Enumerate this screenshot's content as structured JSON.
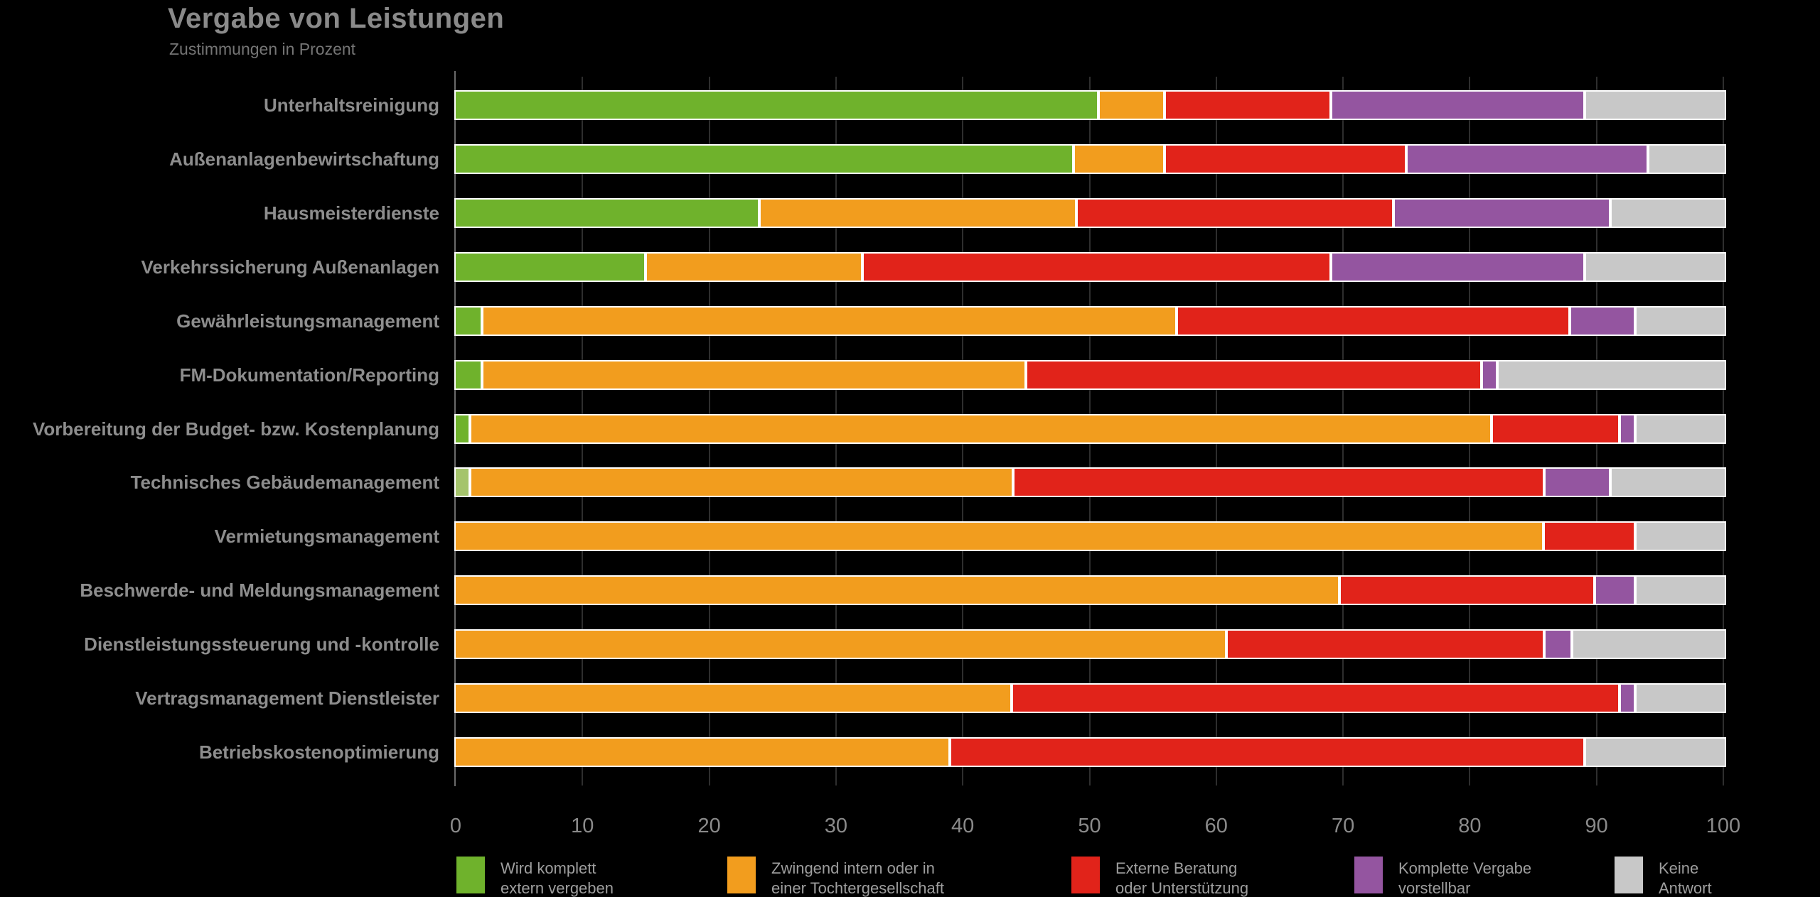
{
  "header": {
    "title": "Vergabe von Leistungen",
    "subtitle": "Zustimmungen in Prozent"
  },
  "chart_data": {
    "type": "bar",
    "orientation": "horizontal",
    "stacked": true,
    "unit": "percent",
    "title": "Vergabe von Leistungen",
    "subtitle": "Zustimmungen in Prozent",
    "xlabel": "",
    "ylabel": "",
    "xlim": [
      0,
      100
    ],
    "x_ticks": [
      0,
      10,
      20,
      30,
      40,
      50,
      60,
      70,
      80,
      90,
      100
    ],
    "grid": "vertical",
    "legend_position": "bottom",
    "background_color": "#000000",
    "categories": [
      "Unterhaltsreinigung",
      "Außenanlagenbewirtschaftung",
      "Hausmeisterdienste",
      "Verkehrssicherung Außenanlagen",
      "Gewährleistungsmanagement",
      "FM-Dokumentation/Reporting",
      "Vorbereitung der Budget- bzw. Kostenplanung",
      "Technisches Gebäudemanagement",
      "Vermietungsmanagement",
      "Beschwerde- und Meldungsmanagement",
      "Dienstleistungssteuerung und -kontrolle",
      "Vertragsmanagement Dienstleister",
      "Betriebskostenoptimierung"
    ],
    "series": [
      {
        "name": "Wird komplett extern vergeben",
        "legend_lines": [
          "Wird komplett",
          "extern vergeben"
        ],
        "color": "#6fb22c",
        "values": [
          51,
          49,
          24,
          15,
          2,
          2,
          1,
          1,
          0,
          0,
          0,
          0,
          0
        ]
      },
      {
        "name": "Zwingend intern oder in einer Tochtergesellschaft",
        "legend_lines": [
          "Zwingend intern oder in",
          "einer Tochtergesellschaft"
        ],
        "color": "#f29d1e",
        "values": [
          5,
          7,
          25,
          17,
          55,
          43,
          81,
          43,
          86,
          70,
          61,
          44,
          39
        ]
      },
      {
        "name": "Externe Beratung oder Unterstützung",
        "legend_lines": [
          "Externe Beratung",
          "oder Unterstützung"
        ],
        "color": "#e1231a",
        "values": [
          13,
          19,
          25,
          37,
          31,
          36,
          10,
          42,
          7,
          20,
          25,
          48,
          50
        ]
      },
      {
        "name": "Komplette Vergabe vorstellbar",
        "legend_lines": [
          "Komplette Vergabe",
          "vorstellbar"
        ],
        "color": "#9455a0",
        "values": [
          20,
          19,
          17,
          20,
          5,
          1,
          1,
          5,
          0,
          3,
          2,
          1,
          0
        ]
      },
      {
        "name": "Keine Antwort",
        "legend_lines": [
          "Keine",
          "Antwort"
        ],
        "color": "#c8c8c8",
        "values": [
          11,
          6,
          9,
          11,
          7,
          18,
          7,
          9,
          7,
          7,
          12,
          7,
          11
        ]
      }
    ],
    "segment_color_overrides": [
      {
        "category": "Technisches Gebäudemanagement",
        "category_index": 7,
        "series_index": 0,
        "color": "#a5c46c"
      }
    ]
  }
}
